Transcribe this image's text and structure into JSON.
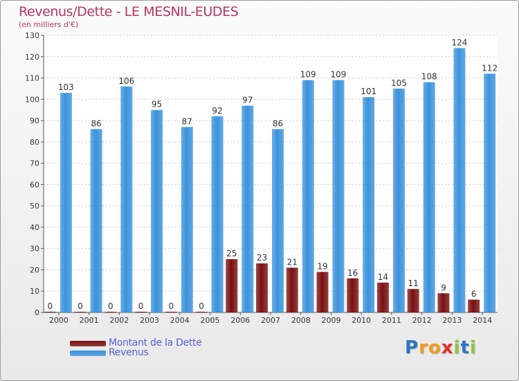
{
  "header": {
    "title": "Revenus/Dette - LE MESNIL-EUDES",
    "subtitle": "(en milliers d'€)"
  },
  "legend": {
    "items": [
      {
        "label": "Montant de la Dette",
        "color": "#7a1010"
      },
      {
        "label": "Revenus",
        "color": "#3b93dc"
      }
    ]
  },
  "logo": {
    "letters": [
      {
        "ch": "P",
        "color": "#2f74c0"
      },
      {
        "ch": "r",
        "color": "#f39a1e"
      },
      {
        "ch": "o",
        "color": "#f39a1e"
      },
      {
        "ch": "x",
        "color": "#e2302a"
      },
      {
        "ch": "i",
        "color": "#8cc63f"
      },
      {
        "ch": "t",
        "color": "#2f74c0"
      },
      {
        "ch": "i",
        "color": "#8cc63f"
      }
    ]
  },
  "chart_data": {
    "type": "bar",
    "categories": [
      "2000",
      "2001",
      "2002",
      "2003",
      "2004",
      "2005",
      "2006",
      "2007",
      "2008",
      "2009",
      "2010",
      "2011",
      "2012",
      "2013",
      "2014"
    ],
    "series": [
      {
        "name": "Montant de la Dette",
        "color": "#7a1010",
        "values": [
          0,
          0,
          0,
          0,
          0,
          0,
          25,
          23,
          21,
          19,
          16,
          14,
          11,
          9,
          6
        ]
      },
      {
        "name": "Revenus",
        "color": "#3b93dc",
        "values": [
          103,
          86,
          106,
          95,
          87,
          92,
          97,
          86,
          109,
          109,
          101,
          105,
          108,
          124,
          112
        ]
      }
    ],
    "ylim": [
      0,
      130
    ],
    "ytick_step": 10,
    "grid": true,
    "legend_position": "bottom-left"
  }
}
